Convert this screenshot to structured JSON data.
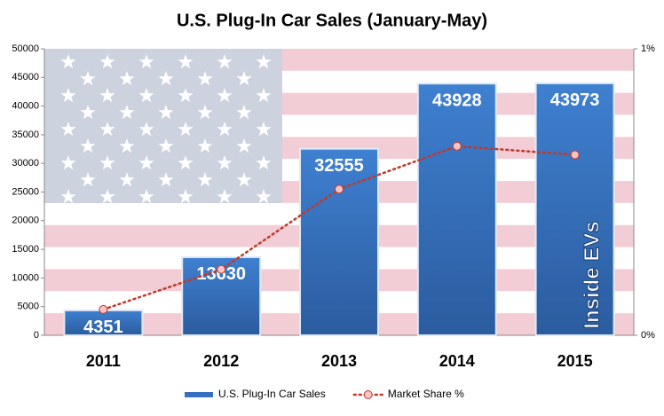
{
  "chart_data": {
    "type": "bar",
    "title": "U.S. Plug-In Car Sales (January-May)",
    "categories": [
      "2011",
      "2012",
      "2013",
      "2014",
      "2015"
    ],
    "series": [
      {
        "name": "U.S. Plug-In Car Sales",
        "type": "bar",
        "color": "#3670bf",
        "values": [
          4351,
          13630,
          32555,
          43928,
          43973
        ]
      },
      {
        "name": "Market Share %",
        "type": "line",
        "axis": "y2",
        "color": "#c0392b",
        "values": [
          0.09,
          0.23,
          0.51,
          0.66,
          0.63
        ]
      }
    ],
    "ylim": [
      0,
      50000
    ],
    "yticks": [
      0,
      5000,
      10000,
      15000,
      20000,
      25000,
      30000,
      35000,
      40000,
      45000,
      50000
    ],
    "y2lim": [
      0,
      1
    ],
    "y2ticks": [
      {
        "value": 0,
        "label": "0%"
      },
      {
        "value": 1,
        "label": "1%"
      }
    ],
    "watermark": "Inside EVs",
    "legend": "bottom"
  }
}
